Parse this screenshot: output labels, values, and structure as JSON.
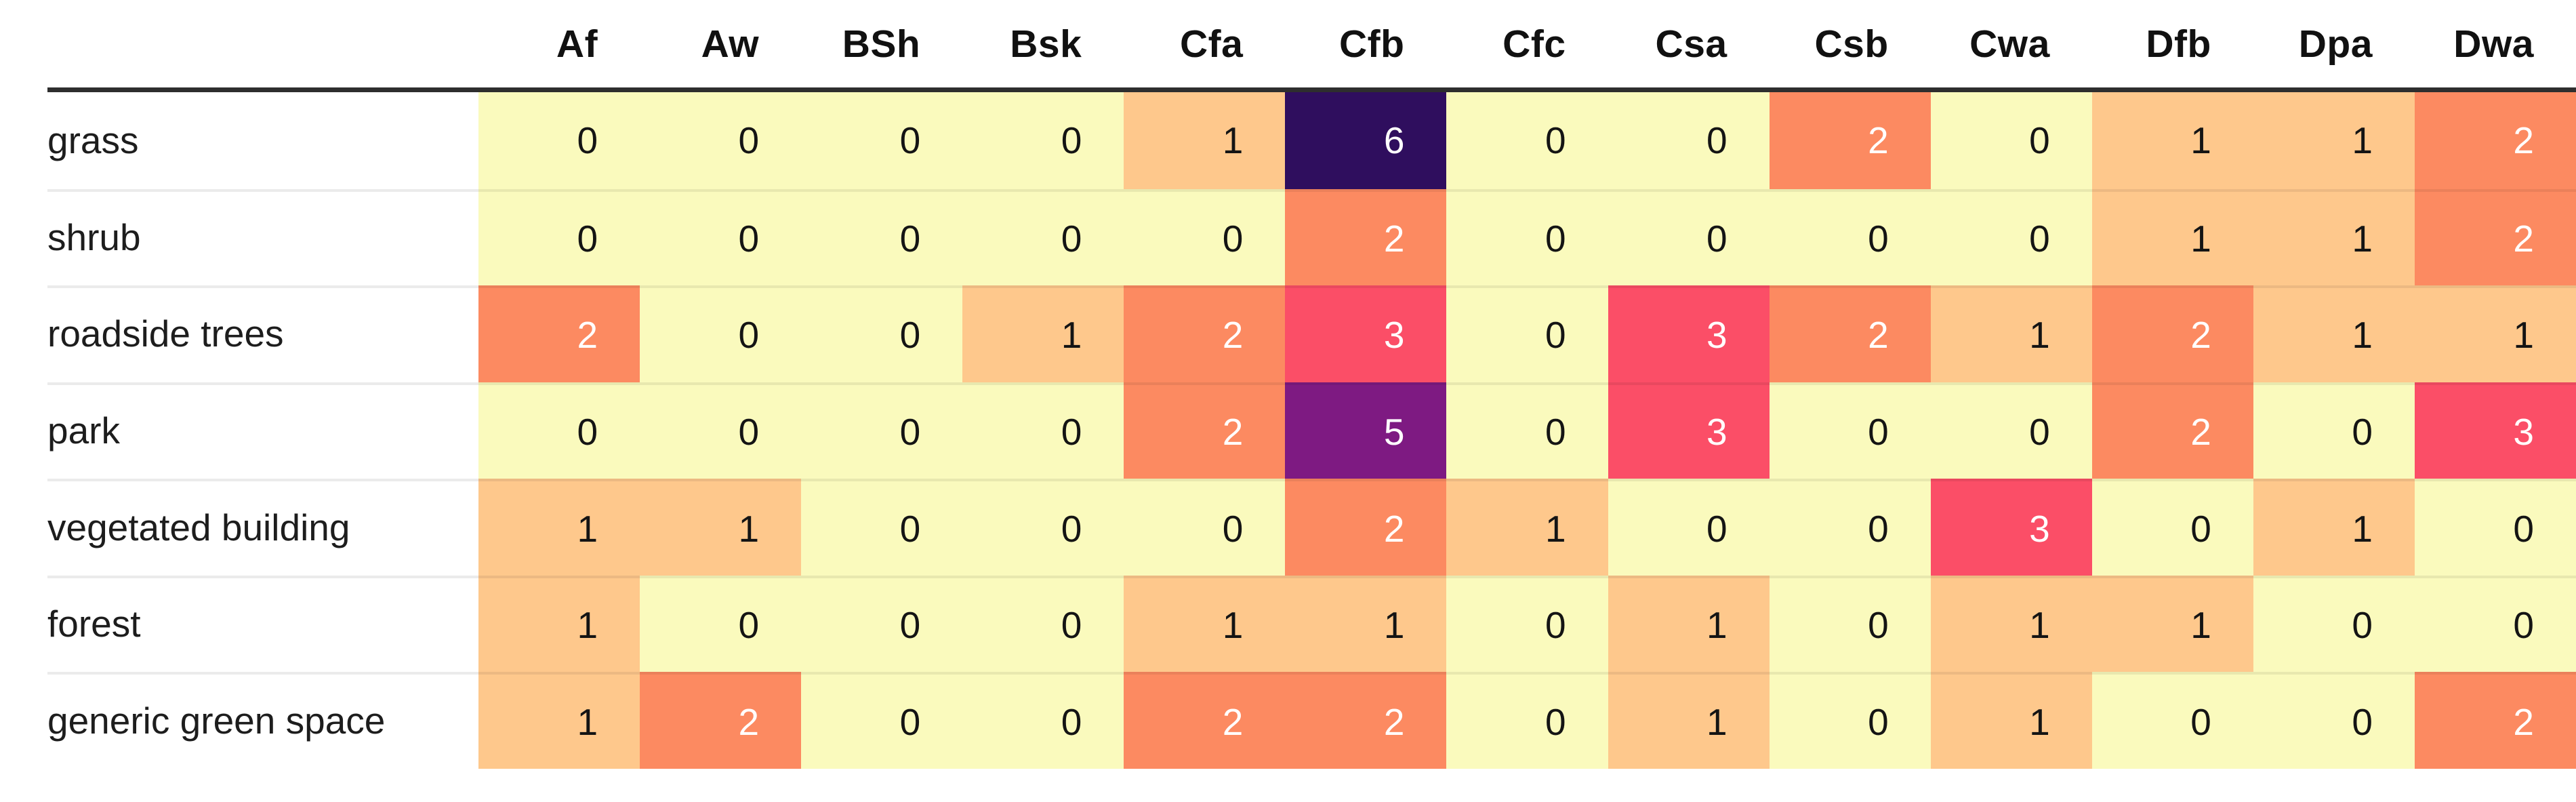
{
  "chart_data": {
    "type": "heatmap",
    "title": "",
    "columns": [
      "Af",
      "Aw",
      "BSh",
      "Bsk",
      "Cfa",
      "Cfb",
      "Cfc",
      "Csa",
      "Csb",
      "Cwa",
      "Dfb",
      "Dpa",
      "Dwa"
    ],
    "rows": [
      "grass",
      "shrub",
      "roadside trees",
      "park",
      "vegetated building",
      "forest",
      "generic green space"
    ],
    "values": [
      [
        0,
        0,
        0,
        0,
        1,
        6,
        0,
        0,
        2,
        0,
        1,
        1,
        2
      ],
      [
        0,
        0,
        0,
        0,
        0,
        2,
        0,
        0,
        0,
        0,
        1,
        1,
        2
      ],
      [
        2,
        0,
        0,
        1,
        2,
        3,
        0,
        3,
        2,
        1,
        2,
        1,
        1
      ],
      [
        0,
        0,
        0,
        0,
        2,
        5,
        0,
        3,
        0,
        0,
        2,
        0,
        3
      ],
      [
        1,
        1,
        0,
        0,
        0,
        2,
        1,
        0,
        0,
        3,
        0,
        1,
        0
      ],
      [
        1,
        0,
        0,
        0,
        1,
        1,
        0,
        1,
        0,
        1,
        1,
        0,
        0
      ],
      [
        1,
        2,
        0,
        0,
        2,
        2,
        0,
        1,
        0,
        1,
        0,
        0,
        2
      ]
    ],
    "value_range": [
      0,
      6
    ],
    "legend_position": "none",
    "grid": false,
    "cell_colors": {
      "0": "#fafabd",
      "1": "#fec88c",
      "2": "#fc8a61",
      "3": "#fb4e67",
      "5": "#7e1a82",
      "6": "#2f0e5e"
    },
    "text_color_dark": "#141414",
    "text_color_light": "#ffffff",
    "white_text_min_value": 2,
    "header_rule_color": "#2e2e2e"
  }
}
